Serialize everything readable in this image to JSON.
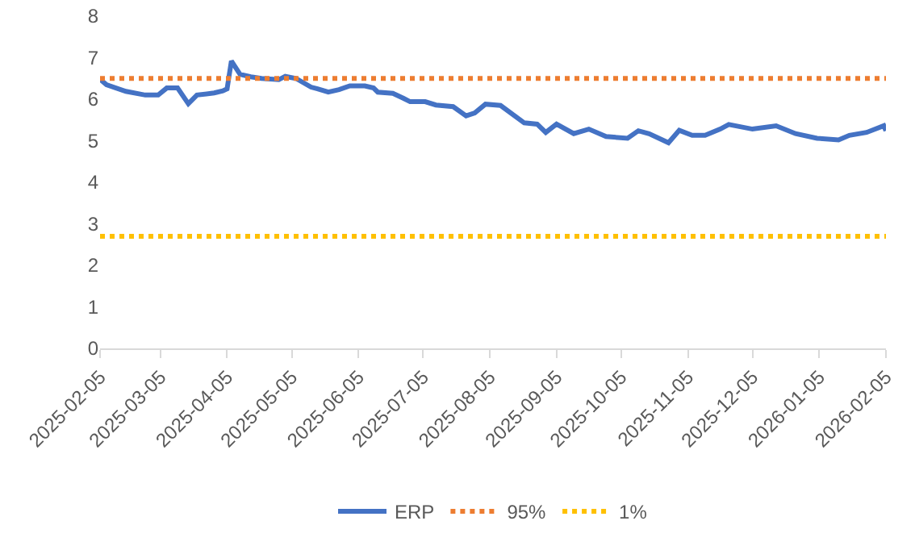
{
  "chart_data": {
    "type": "line",
    "legend": "bottom",
    "grid": false,
    "marker": "none",
    "xlim": [
      "2025-02-05",
      "2026-02-05"
    ],
    "xticks": [
      "2025-02-05",
      "2025-03-05",
      "2025-04-05",
      "2025-05-05",
      "2025-06-05",
      "2025-07-05",
      "2025-08-05",
      "2025-09-05",
      "2025-10-05",
      "2025-11-05",
      "2025-12-05",
      "2026-01-05",
      "2026-02-05"
    ],
    "ylim": [
      0,
      8
    ],
    "yticks": [
      0,
      1,
      2,
      3,
      4,
      5,
      6,
      7,
      8
    ],
    "series": [
      {
        "name": "ERP",
        "color": "#4472c4",
        "line_style": "solid",
        "x": [
          "2025-02-05",
          "2025-02-08",
          "2025-02-17",
          "2025-02-26",
          "2025-03-04",
          "2025-03-08",
          "2025-03-13",
          "2025-03-18",
          "2025-03-22",
          "2025-03-30",
          "2025-04-03",
          "2025-04-05",
          "2025-04-07",
          "2025-04-11",
          "2025-04-16",
          "2025-04-21",
          "2025-04-29",
          "2025-05-02",
          "2025-05-07",
          "2025-05-14",
          "2025-05-17",
          "2025-05-22",
          "2025-05-27",
          "2025-06-01",
          "2025-06-08",
          "2025-06-12",
          "2025-06-14",
          "2025-06-21",
          "2025-06-26",
          "2025-06-29",
          "2025-07-06",
          "2025-07-11",
          "2025-07-19",
          "2025-07-25",
          "2025-07-29",
          "2025-08-03",
          "2025-08-10",
          "2025-08-21",
          "2025-08-27",
          "2025-08-31",
          "2025-09-05",
          "2025-09-13",
          "2025-09-20",
          "2025-09-28",
          "2025-10-08",
          "2025-10-13",
          "2025-10-18",
          "2025-10-27",
          "2025-11-01",
          "2025-11-07",
          "2025-11-13",
          "2025-11-20",
          "2025-11-24",
          "2025-12-05",
          "2025-12-16",
          "2025-12-25",
          "2026-01-04",
          "2026-01-14",
          "2026-01-19",
          "2026-01-27",
          "2026-02-04",
          "2026-02-05"
        ],
        "values": [
          6.48,
          6.35,
          6.19,
          6.1,
          6.1,
          6.27,
          6.27,
          5.89,
          6.1,
          6.15,
          6.2,
          6.25,
          6.92,
          6.6,
          6.54,
          6.5,
          6.47,
          6.55,
          6.5,
          6.29,
          6.25,
          6.17,
          6.23,
          6.32,
          6.32,
          6.27,
          6.17,
          6.14,
          6.02,
          5.94,
          5.94,
          5.86,
          5.82,
          5.6,
          5.67,
          5.88,
          5.85,
          5.43,
          5.4,
          5.2,
          5.4,
          5.17,
          5.28,
          5.1,
          5.06,
          5.24,
          5.17,
          4.95,
          5.25,
          5.13,
          5.13,
          5.28,
          5.39,
          5.28,
          5.36,
          5.17,
          5.06,
          5.02,
          5.13,
          5.2,
          5.36,
          5.24
        ]
      },
      {
        "name": "95%",
        "color": "#ed7d31",
        "line_style": "dotted",
        "x": [
          "2025-02-05",
          "2026-02-05"
        ],
        "values": [
          6.5,
          6.5
        ]
      },
      {
        "name": "1%",
        "color": "#ffc000",
        "line_style": "dotted",
        "x": [
          "2025-02-05",
          "2026-02-05"
        ],
        "values": [
          2.7,
          2.7
        ]
      }
    ]
  }
}
